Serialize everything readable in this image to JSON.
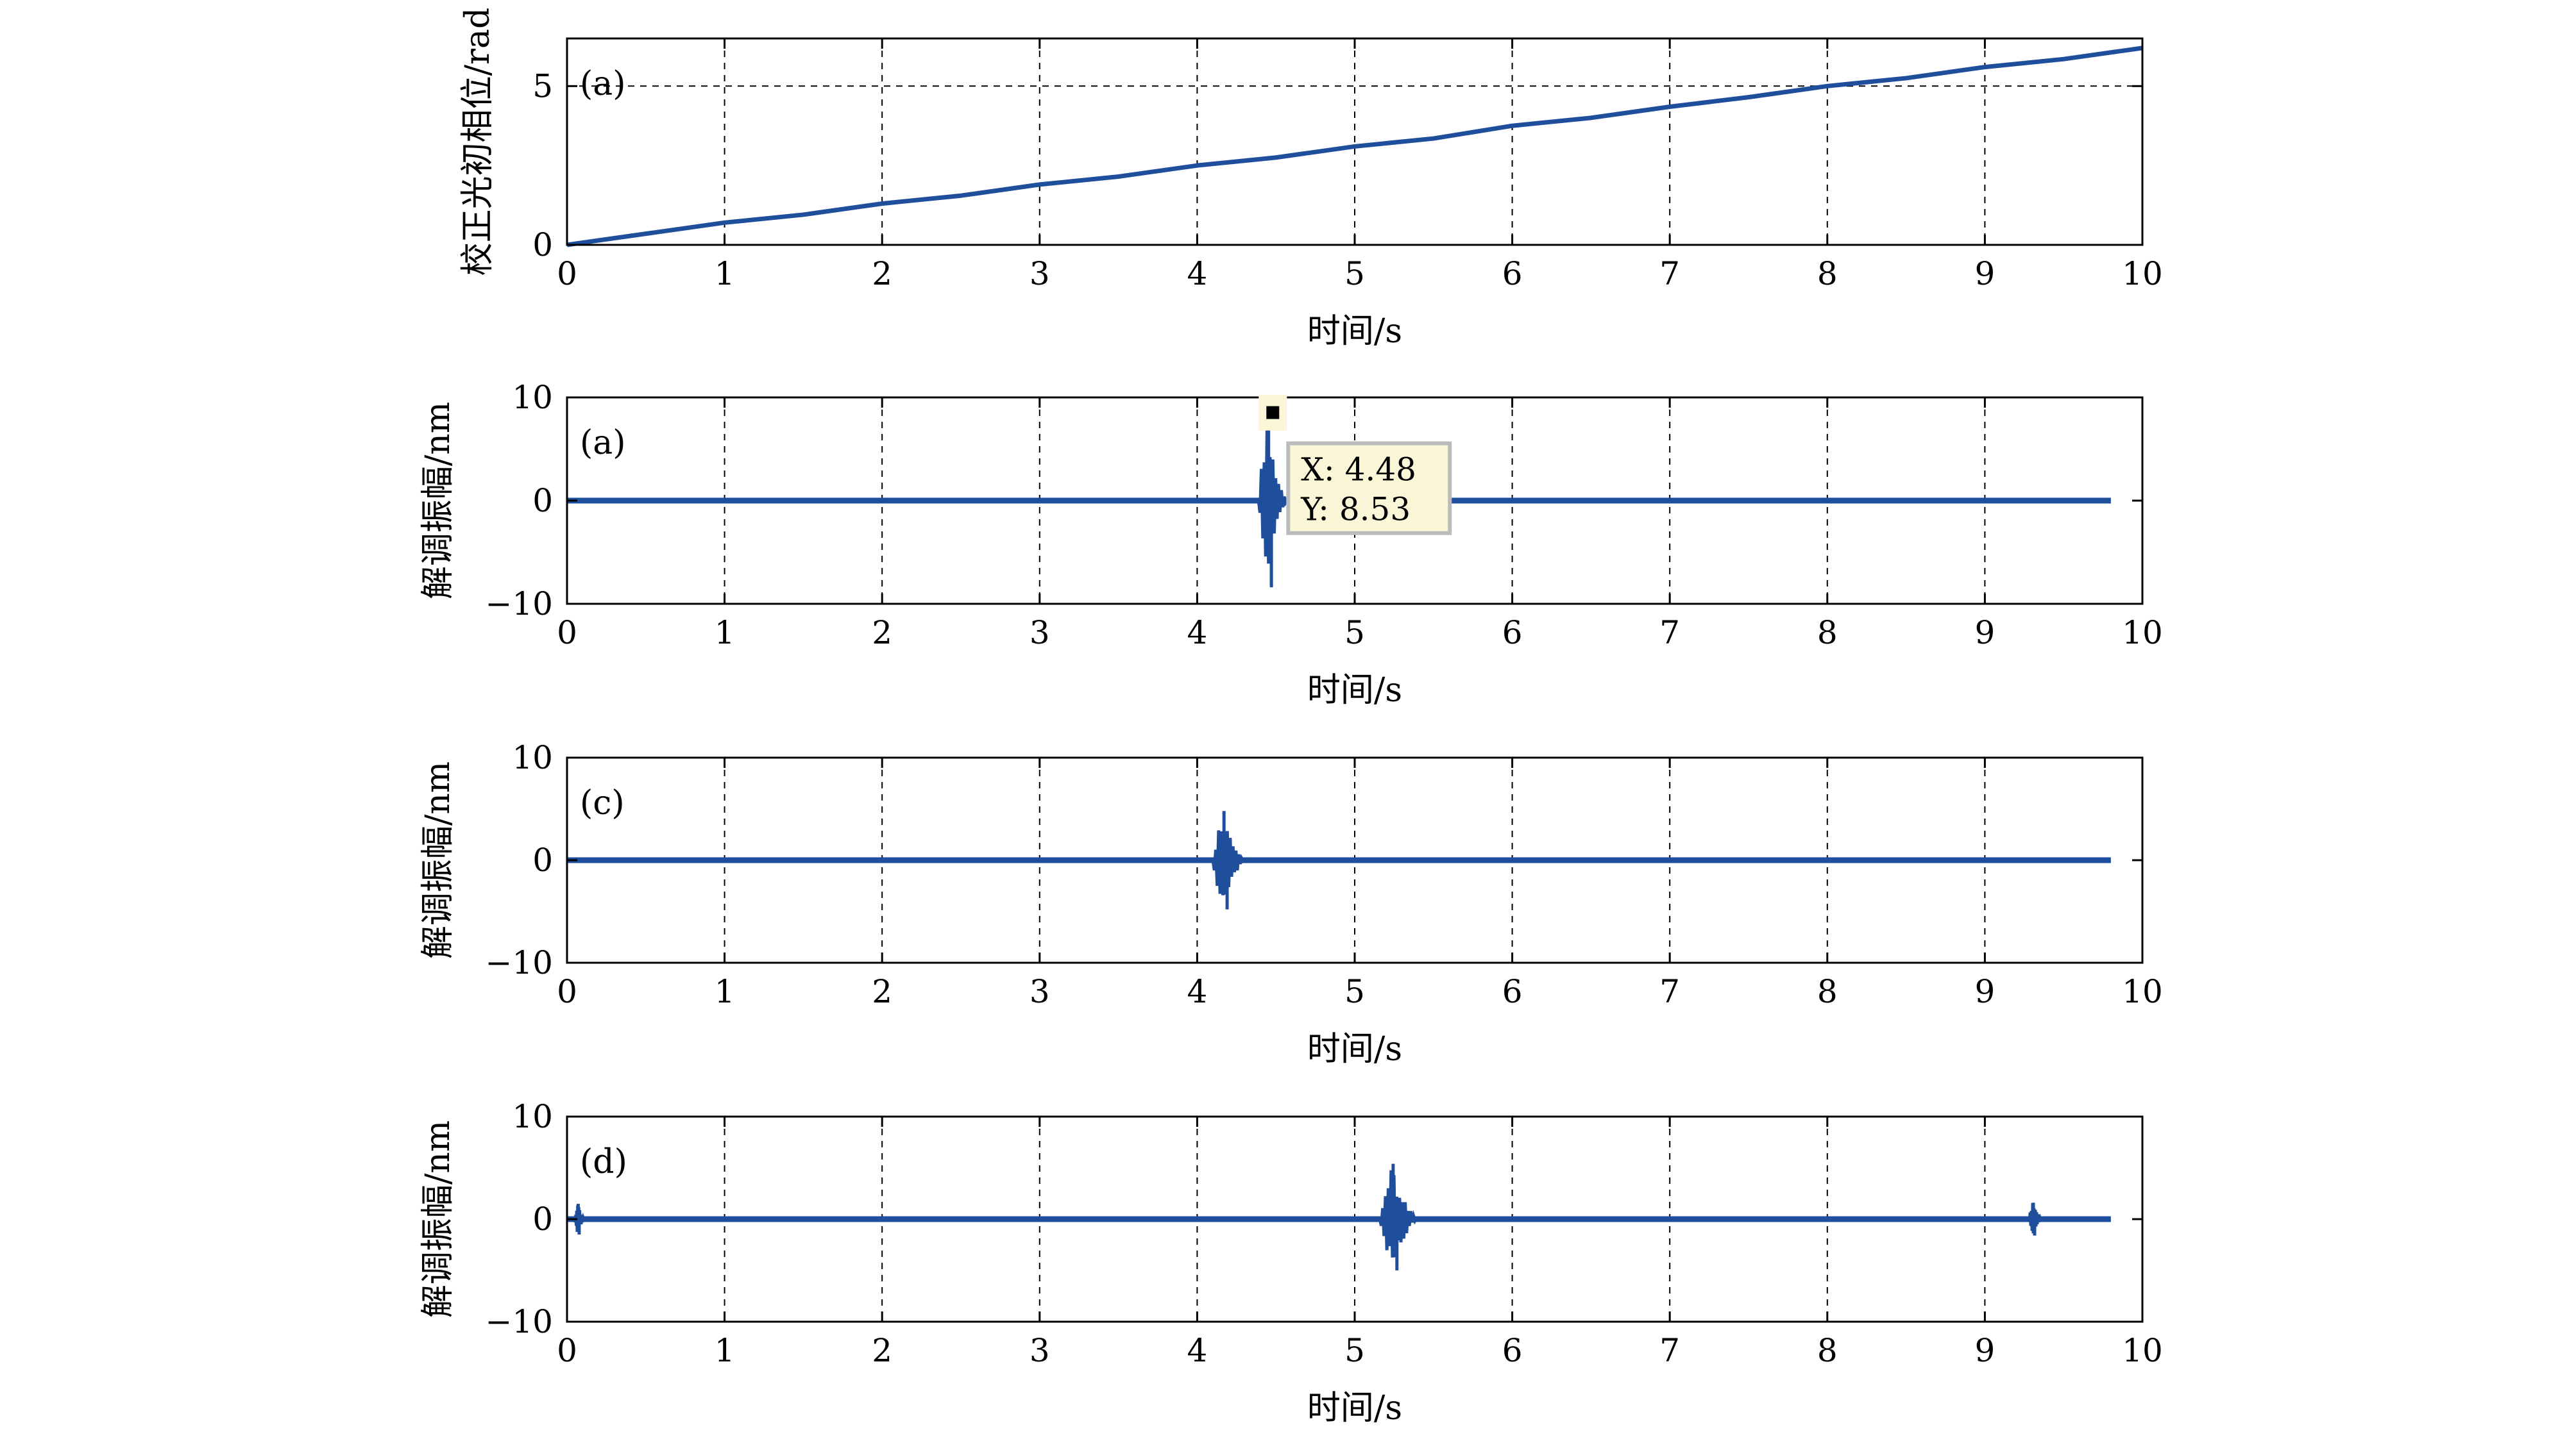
{
  "chart_data": [
    {
      "type": "line",
      "panel_label": "(a)",
      "xlabel": "时间/s",
      "ylabel": "校正光初相位/rad",
      "xlim": [
        0,
        10
      ],
      "ylim": [
        0,
        6.5
      ],
      "x_ticks": [
        "0",
        "1",
        "2",
        "3",
        "4",
        "5",
        "6",
        "7",
        "8",
        "9",
        "10"
      ],
      "y_ticks": [
        {
          "v": 0,
          "label": "0"
        },
        {
          "v": 5,
          "label": "5"
        }
      ],
      "grid": "x-dashed",
      "ref_line_y": 5,
      "color": "#1f4e9c",
      "series": [
        {
          "x": [
            0,
            1,
            1.5,
            2,
            2.5,
            3,
            3.5,
            4,
            4.5,
            5,
            5.5,
            6,
            6.5,
            7,
            7.5,
            8,
            8.5,
            9,
            9.5,
            10
          ],
          "values": [
            0,
            0.7,
            0.95,
            1.3,
            1.55,
            1.9,
            2.15,
            2.5,
            2.75,
            3.1,
            3.35,
            3.75,
            4.0,
            4.35,
            4.65,
            5.0,
            5.25,
            5.6,
            5.85,
            6.2
          ]
        }
      ]
    },
    {
      "type": "line",
      "panel_label": "(a)",
      "xlabel": "时间/s",
      "ylabel": "解调振幅/nm",
      "xlim": [
        0,
        10
      ],
      "ylim": [
        -10,
        10
      ],
      "x_ticks": [
        "0",
        "1",
        "2",
        "3",
        "4",
        "5",
        "6",
        "7",
        "8",
        "9",
        "10"
      ],
      "y_ticks": [
        {
          "v": 10,
          "label": "10"
        },
        {
          "v": 0,
          "label": "0"
        },
        {
          "v": -10,
          "label": "−10"
        }
      ],
      "grid": "x-dashed",
      "color": "#1f4e9c",
      "baseline_end": 9.8,
      "bursts": [
        {
          "center": 4.48,
          "width": 0.18,
          "peak": 8.53,
          "trough": -8.4
        }
      ],
      "datatip": {
        "x_text": "X: 4.48",
        "y_text": "Y: 8.53",
        "x": 4.48,
        "y": 8.53
      }
    },
    {
      "type": "line",
      "panel_label": "(c)",
      "xlabel": "时间/s",
      "ylabel": "解调振幅/nm",
      "xlim": [
        0,
        10
      ],
      "ylim": [
        -10,
        10
      ],
      "x_ticks": [
        "0",
        "1",
        "2",
        "3",
        "4",
        "5",
        "6",
        "7",
        "8",
        "9",
        "10"
      ],
      "y_ticks": [
        {
          "v": 10,
          "label": "10"
        },
        {
          "v": 0,
          "label": "0"
        },
        {
          "v": -10,
          "label": "−10"
        }
      ],
      "grid": "x-dashed",
      "color": "#1f4e9c",
      "baseline_end": 9.8,
      "bursts": [
        {
          "center": 4.2,
          "width": 0.2,
          "peak": 4.8,
          "trough": -4.8
        }
      ]
    },
    {
      "type": "line",
      "panel_label": "(d)",
      "xlabel": "时间/s",
      "ylabel": "解调振幅/nm",
      "xlim": [
        0,
        10
      ],
      "ylim": [
        -10,
        10
      ],
      "x_ticks": [
        "0",
        "1",
        "2",
        "3",
        "4",
        "5",
        "6",
        "7",
        "8",
        "9",
        "10"
      ],
      "y_ticks": [
        {
          "v": 10,
          "label": "10"
        },
        {
          "v": 0,
          "label": "0"
        },
        {
          "v": -10,
          "label": "−10"
        }
      ],
      "grid": "x-dashed",
      "color": "#1f4e9c",
      "baseline_end": 9.8,
      "bursts": [
        {
          "center": 0.08,
          "width": 0.06,
          "peak": 1.5,
          "trough": -1.5
        },
        {
          "center": 5.28,
          "width": 0.24,
          "peak": 5.4,
          "trough": -5.0
        },
        {
          "center": 9.32,
          "width": 0.08,
          "peak": 1.6,
          "trough": -1.6
        }
      ]
    }
  ]
}
